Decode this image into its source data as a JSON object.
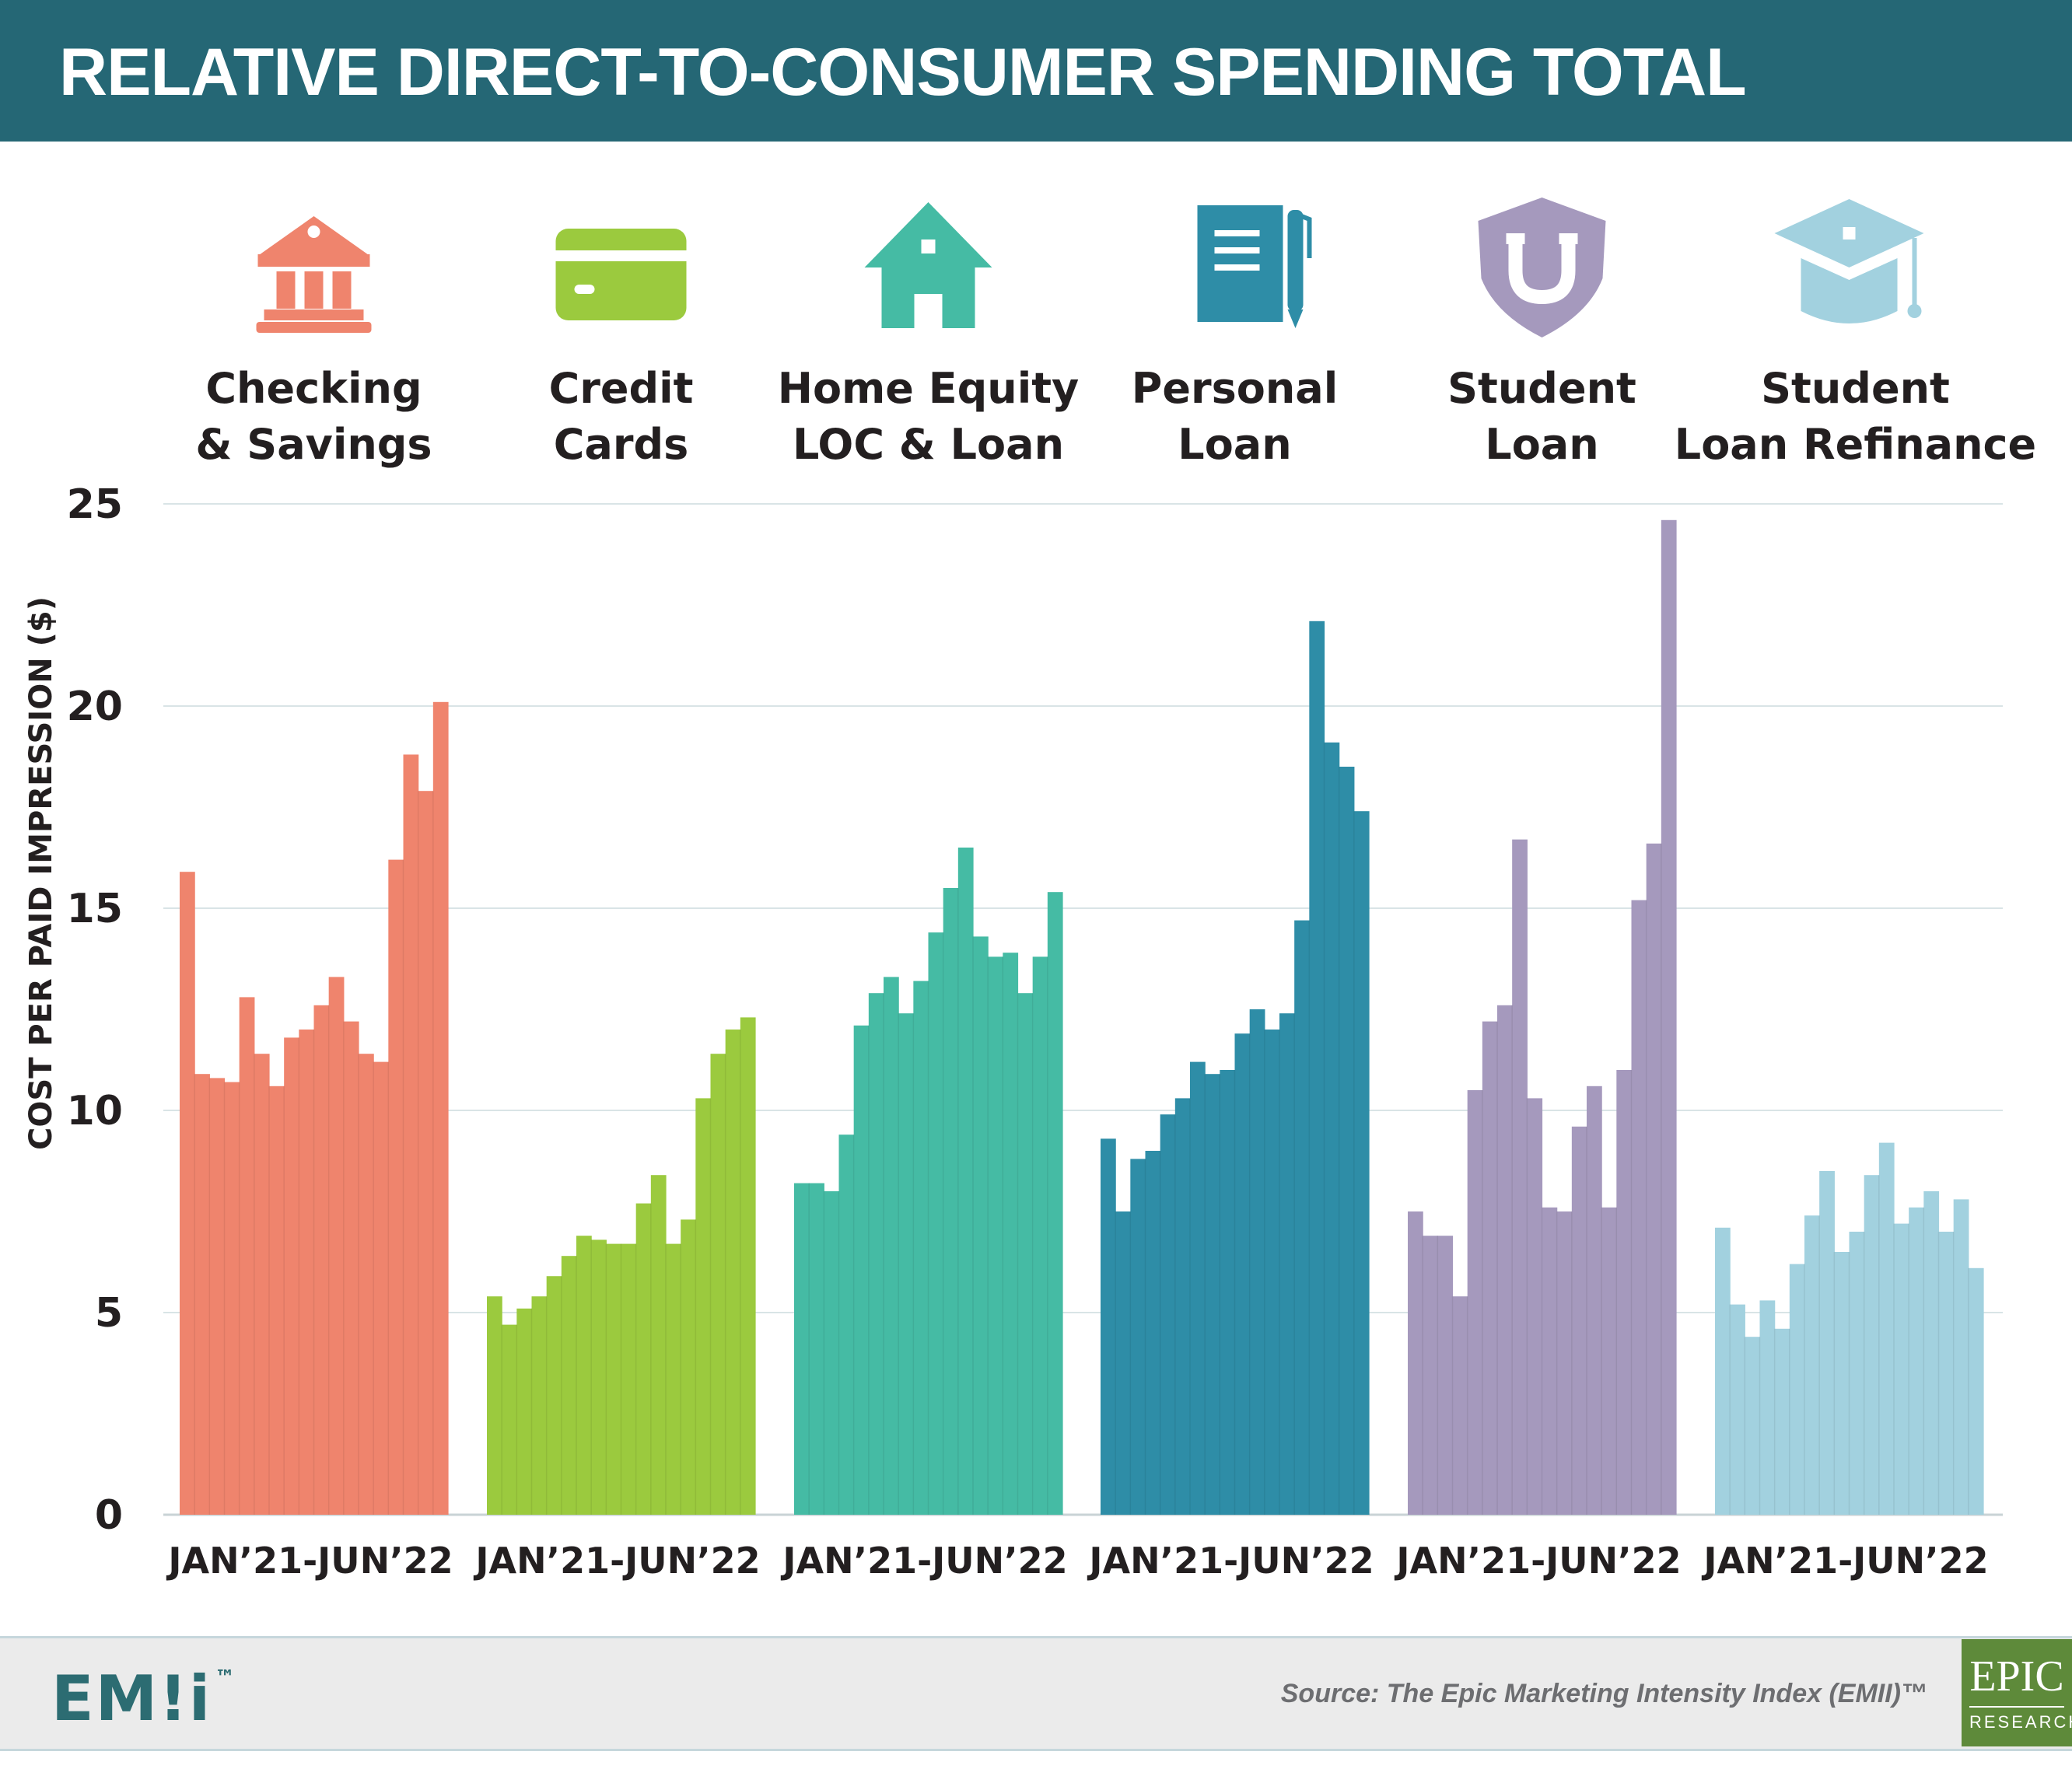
{
  "title": "RELATIVE DIRECT-TO-CONSUMER SPENDING TOTAL",
  "source": "Source: The Epic Marketing Intensity Index (EMII)™",
  "logos": {
    "emii": "EM!i",
    "emii_tm": "™",
    "epic": "EPIC",
    "epic_sub": "RESEARCH"
  },
  "chart_data": {
    "type": "bar",
    "ylabel": "COST PER PAID IMPRESSION ($)",
    "ylim": [
      0,
      25
    ],
    "yticks": [
      0,
      5,
      10,
      15,
      20,
      25
    ],
    "grid": true,
    "panels": [
      {
        "name": "Checking\n& Savings",
        "icon": "bank-icon",
        "color": "#ef846d",
        "range_label": "JAN’21-JUN’22",
        "values": [
          15.9,
          10.9,
          10.8,
          10.7,
          12.8,
          11.4,
          10.6,
          11.8,
          12.0,
          12.6,
          13.3,
          12.2,
          11.4,
          11.2,
          16.2,
          18.8,
          17.9,
          20.1
        ]
      },
      {
        "name": "Credit\nCards",
        "icon": "credit-card-icon",
        "color": "#9bca3e",
        "range_label": "JAN’21-JUN’22",
        "values": [
          5.4,
          4.7,
          5.1,
          5.4,
          5.9,
          6.4,
          6.9,
          6.8,
          6.7,
          6.7,
          7.7,
          8.4,
          6.7,
          7.3,
          10.3,
          11.4,
          12.0,
          12.3
        ]
      },
      {
        "name": "Home Equity\nLOC & Loan",
        "icon": "house-icon",
        "color": "#45bba4",
        "range_label": "JAN’21-JUN’22",
        "values": [
          8.2,
          8.2,
          8.0,
          9.4,
          12.1,
          12.9,
          13.3,
          12.4,
          13.2,
          14.4,
          15.5,
          16.5,
          14.3,
          13.8,
          13.9,
          12.9,
          13.8,
          15.4
        ]
      },
      {
        "name": "Personal\nLoan",
        "icon": "notebook-icon",
        "color": "#2e8da7",
        "range_label": "JAN’21-JUN’22",
        "values": [
          9.3,
          7.5,
          8.8,
          9.0,
          9.9,
          10.3,
          11.2,
          10.9,
          11.0,
          11.9,
          12.5,
          12.0,
          12.4,
          14.7,
          22.1,
          19.1,
          18.5,
          17.4
        ]
      },
      {
        "name": "Student\nLoan",
        "icon": "shield-icon",
        "color": "#a599bd",
        "range_label": "JAN’21-JUN’22",
        "values": [
          7.5,
          6.9,
          6.9,
          5.4,
          10.5,
          12.2,
          12.6,
          16.7,
          10.3,
          7.6,
          7.5,
          9.6,
          10.6,
          7.6,
          11.0,
          15.2,
          16.6,
          24.6
        ]
      },
      {
        "name": "Student\nLoan Refinance",
        "icon": "graduation-cap-icon",
        "color": "#a2d1df",
        "range_label": "JAN’21-JUN’22",
        "values": [
          7.1,
          5.2,
          4.4,
          5.3,
          4.6,
          6.2,
          7.4,
          8.5,
          6.5,
          7.0,
          8.4,
          9.2,
          7.2,
          7.6,
          8.0,
          7.0,
          7.8,
          6.1
        ]
      }
    ]
  }
}
